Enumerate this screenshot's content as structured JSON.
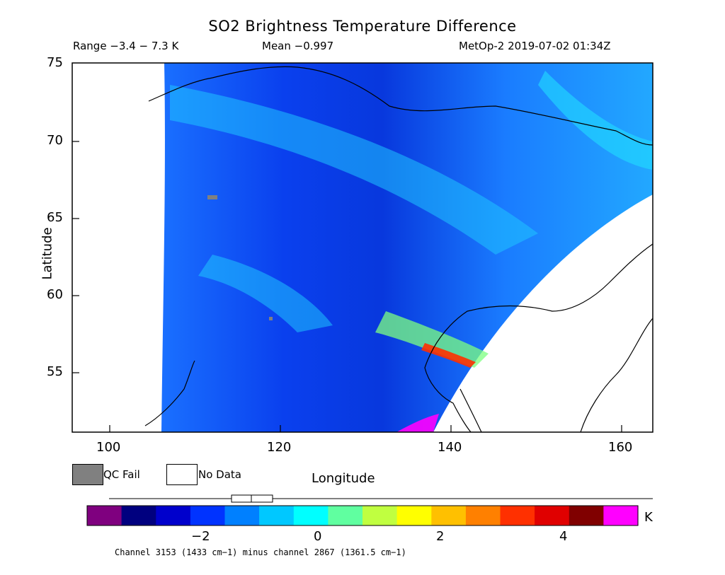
{
  "header": {
    "title": "SO2 Brightness Temperature Difference",
    "range": "Range −3.4 − 7.3 K",
    "mean": "Mean −0.997",
    "satellite": "MetOp-2 2019-07-02 01:34Z"
  },
  "axes": {
    "ylabel": "Latitude",
    "xlabel": "Longitude",
    "yticks": [
      "75",
      "70",
      "65",
      "60",
      "55"
    ],
    "xticks": [
      "100",
      "120",
      "140",
      "160"
    ]
  },
  "legend": {
    "qc_fail": "QC Fail",
    "no_data": "No Data",
    "qc_color": "#808080"
  },
  "colorbar": {
    "unit": "K",
    "ticks": [
      "−2",
      "0",
      "2",
      "4"
    ],
    "colors": [
      "#7f007f",
      "#00007f",
      "#0000cc",
      "#0033ff",
      "#0080ff",
      "#00c8ff",
      "#00ffff",
      "#60ffa0",
      "#c0ff40",
      "#ffff00",
      "#ffc000",
      "#ff8000",
      "#ff3000",
      "#e00000",
      "#800000",
      "#ff00ff"
    ]
  },
  "footer": "Channel 3153 (1433 cm−1) minus channel 2867 (1361.5 cm−1)",
  "map": {
    "lat_range": [
      51,
      75
    ],
    "lon_range": [
      95,
      163
    ]
  }
}
